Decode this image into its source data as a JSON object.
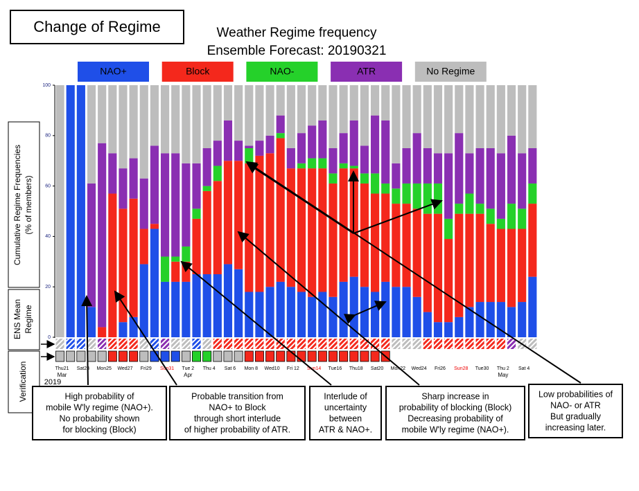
{
  "chart_data": {
    "type": "stacked_bar",
    "badge": "Change of Regime",
    "title": "Weather Regime frequency",
    "subtitle": "Ensemble Forecast: 20190321",
    "ylabel": [
      "Cumulative Regime Frequencies",
      "(% of members)"
    ],
    "row_labels": {
      "ens": [
        "ENS Mean",
        "Regime"
      ],
      "verification": "Verification"
    },
    "ylim": [
      0,
      100
    ],
    "yticks": [
      0,
      20,
      40,
      60,
      80,
      100
    ],
    "categories": [
      "Thu21",
      null,
      "Sat23",
      null,
      "Mon25",
      null,
      "Wed27",
      null,
      "Fri29",
      null,
      "Sun31",
      null,
      "Tue 2",
      null,
      "Thu 4",
      null,
      "Sat 6",
      null,
      "Mon 8",
      null,
      "Wed10",
      null,
      "Fri 12",
      null,
      "Sun14",
      null,
      "Tue16",
      null,
      "Thu18",
      null,
      "Sat20",
      null,
      "Mon22",
      null,
      "Wed24",
      null,
      "Fri26",
      null,
      "Sun28",
      null,
      "Tue30",
      null,
      "Thu 2",
      null,
      "Sat 4",
      null
    ],
    "months": [
      "Mar",
      "Apr",
      "May"
    ],
    "year": "2019",
    "series": [
      {
        "name": "NAO+",
        "color": "#1f4fe8",
        "values": [
          0,
          100,
          100,
          12,
          0,
          0,
          6,
          8,
          29,
          43,
          22,
          22,
          22,
          25,
          25,
          25,
          29,
          27,
          18,
          18,
          20,
          22,
          20,
          18,
          16,
          18,
          16,
          22,
          24,
          20,
          18,
          22,
          20,
          20,
          16,
          10,
          6,
          6,
          8,
          12,
          14,
          14,
          14,
          12,
          14,
          24
        ]
      },
      {
        "name": "Block",
        "color": "#f4281c",
        "values": [
          0,
          0,
          0,
          0,
          4,
          57,
          45,
          47,
          14,
          2,
          0,
          8,
          8,
          22,
          33,
          37,
          41,
          43,
          51,
          54,
          53,
          57,
          47,
          49,
          51,
          49,
          45,
          45,
          43,
          41,
          39,
          35,
          33,
          33,
          35,
          39,
          43,
          33,
          41,
          37,
          35,
          31,
          29,
          31,
          29,
          29
        ]
      },
      {
        "name": "NAO-",
        "color": "#25d12a",
        "values": [
          0,
          0,
          0,
          0,
          0,
          0,
          0,
          0,
          0,
          0,
          10,
          2,
          6,
          4,
          2,
          6,
          0,
          0,
          6,
          0,
          0,
          2,
          0,
          2,
          4,
          4,
          4,
          2,
          1,
          4,
          8,
          4,
          6,
          8,
          10,
          12,
          12,
          8,
          4,
          8,
          4,
          6,
          4,
          10,
          8,
          8
        ]
      },
      {
        "name": "ATR",
        "color": "#8a2fb2",
        "values": [
          0,
          0,
          0,
          49,
          73,
          16,
          16,
          16,
          20,
          31,
          41,
          41,
          33,
          18,
          15,
          10,
          16,
          8,
          1,
          6,
          7,
          7,
          8,
          12,
          13,
          15,
          10,
          12,
          18,
          11,
          23,
          25,
          10,
          14,
          20,
          14,
          12,
          26,
          28,
          16,
          22,
          24,
          26,
          27,
          22,
          14
        ]
      },
      {
        "name": "No Regime",
        "color": "#bdbdbd",
        "values": [
          100,
          0,
          0,
          39,
          23,
          27,
          33,
          29,
          37,
          24,
          27,
          27,
          31,
          31,
          25,
          22,
          14,
          22,
          24,
          22,
          20,
          12,
          25,
          19,
          16,
          14,
          25,
          19,
          14,
          24,
          12,
          14,
          31,
          25,
          19,
          25,
          27,
          27,
          19,
          27,
          25,
          25,
          27,
          20,
          27,
          25
        ]
      }
    ],
    "ens_mean": [
      "No Regime",
      "NAO+",
      "NAO+",
      "No Regime",
      "ATR",
      "Block",
      "Block",
      "Block",
      "No Regime",
      "NAO+",
      "ATR",
      "No Regime",
      "No Regime",
      "NAO+",
      "No Regime",
      "Block",
      "Block",
      "Block",
      "Block",
      "Block",
      "Block",
      "Block",
      "Block",
      "Block",
      "Block",
      "Block",
      "Block",
      "Block",
      "Block",
      "Block",
      "Block",
      "Block",
      "No Regime",
      "No Regime",
      "No Regime",
      "Block",
      "Block",
      "Block",
      "Block",
      "Block",
      "Block",
      "Block",
      "Block",
      "ATR",
      "No Regime",
      "No Regime"
    ],
    "verification": [
      "No Regime",
      "No Regime",
      "No Regime",
      "No Regime",
      "No Regime",
      "Block",
      "Block",
      "Block",
      "No Regime",
      "NAO+",
      "NAO+",
      "NAO+",
      "No Regime",
      "NAO-",
      "NAO-",
      "No Regime",
      "No Regime",
      "No Regime",
      "Block",
      "Block",
      "Block",
      "Block",
      "Block",
      "Block",
      "Block",
      "Block",
      "Block",
      "Block",
      "Block",
      "Block",
      "Block",
      "Block",
      null,
      null,
      null,
      null,
      null,
      null,
      null,
      null,
      null,
      null,
      null,
      null,
      null,
      null
    ],
    "annotations": [
      [
        "High probability of",
        "mobile W'ly regime (NAO+).",
        "No probability shown",
        "for blocking (Block)"
      ],
      [
        "Probable transition from",
        "NAO+ to Block",
        "through short interlude",
        "of higher probability of ATR."
      ],
      [
        "Interlude of",
        "uncertainty",
        "between",
        "ATR & NAO+."
      ],
      [
        "Sharp increase in",
        "probability of blocking (Block)",
        "Decreasing probability of",
        "mobile W'ly regime (NAO+)."
      ],
      [
        "Low probabilities of",
        "NAO- or ATR",
        "But gradually",
        "increasing later."
      ]
    ]
  }
}
